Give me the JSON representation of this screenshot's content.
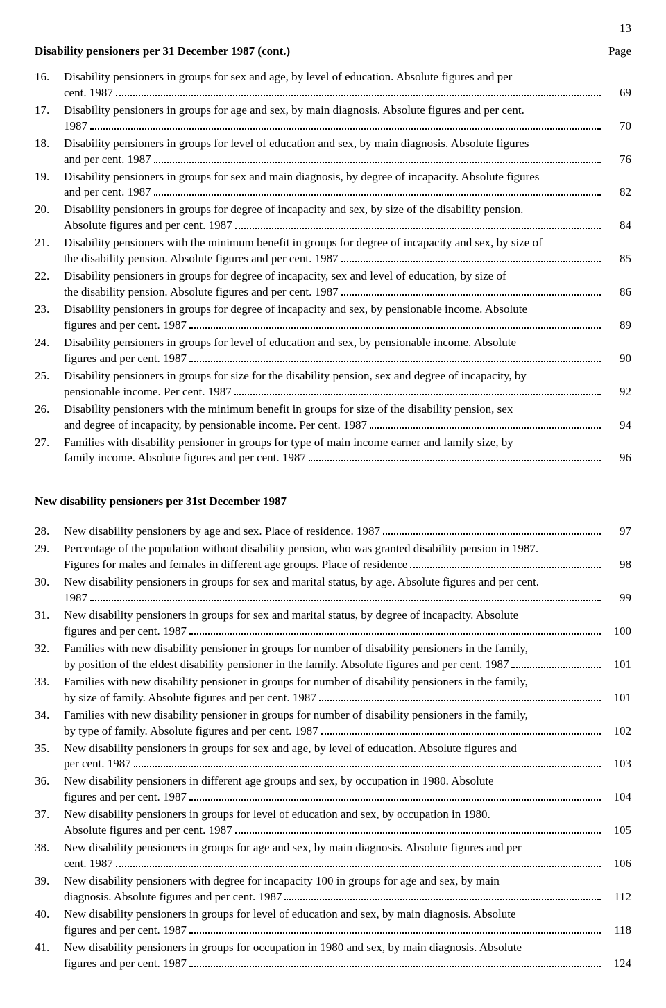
{
  "pageNumber": "13",
  "headerTitle": "Disability pensioners per 31 December 1987 (cont.)",
  "headerPageLabel": "Page",
  "section2Heading": "New disability pensioners per 31st December 1987",
  "section1": [
    {
      "num": "16.",
      "lines": [
        "Disability pensioners in groups for sex and age, by level of education. Absolute figures and per",
        "cent. 1987"
      ],
      "page": "69"
    },
    {
      "num": "17.",
      "lines": [
        "Disability pensioners in groups for age and sex, by main diagnosis. Absolute figures and per cent.",
        "1987"
      ],
      "page": "70"
    },
    {
      "num": "18.",
      "lines": [
        "Disability pensioners in groups for level of education and sex, by main diagnosis. Absolute figures",
        "and per cent. 1987"
      ],
      "page": "76"
    },
    {
      "num": "19.",
      "lines": [
        "Disability pensioners in groups for sex and main diagnosis, by degree of incapacity. Absolute figures",
        "and per cent. 1987"
      ],
      "page": "82"
    },
    {
      "num": "20.",
      "lines": [
        "Disability pensioners in groups for degree of incapacity and sex, by size of the disability pension.",
        "Absolute figures and per cent. 1987"
      ],
      "page": "84"
    },
    {
      "num": "21.",
      "lines": [
        "Disability pensioners with the minimum benefit in groups for degree of incapacity and sex, by size of",
        "the disability pension. Absolute figures and per cent. 1987"
      ],
      "page": "85"
    },
    {
      "num": "22.",
      "lines": [
        "Disability pensioners in groups for degree of incapacity, sex and level of education, by size of",
        "the disability pension. Absolute figures and per cent. 1987"
      ],
      "page": "86"
    },
    {
      "num": "23.",
      "lines": [
        "Disability pensioners in groups for degree of incapacity and sex, by pensionable income. Absolute",
        "figures and per cent. 1987"
      ],
      "page": "89"
    },
    {
      "num": "24.",
      "lines": [
        "Disability pensioners in groups for level of education and sex, by pensionable income. Absolute",
        "figures and per cent. 1987"
      ],
      "page": "90"
    },
    {
      "num": "25.",
      "lines": [
        "Disability pensioners in groups for size for the disability pension, sex and degree of incapacity, by",
        "pensionable income. Per cent. 1987"
      ],
      "page": "92"
    },
    {
      "num": "26.",
      "lines": [
        "Disability pensioners with the minimum benefit in groups for size of the disability pension, sex",
        "and degree of incapacity, by pensionable income. Per cent. 1987"
      ],
      "page": "94"
    },
    {
      "num": "27.",
      "lines": [
        "Families with disability pensioner in groups for type of main income earner and family size, by",
        "family income. Absolute figures and per cent. 1987"
      ],
      "page": "96"
    }
  ],
  "section2": [
    {
      "num": "28.",
      "lines": [
        "New disability pensioners by age and sex. Place of residence. 1987"
      ],
      "page": "97"
    },
    {
      "num": "29.",
      "lines": [
        "Percentage of the population without disability pension, who was granted disability pension in 1987.",
        "Figures for males and females in different age groups. Place of residence"
      ],
      "page": "98"
    },
    {
      "num": "30.",
      "lines": [
        "New disability pensioners in groups for sex and marital status, by age. Absolute figures and per cent.",
        "1987"
      ],
      "page": "99"
    },
    {
      "num": "31.",
      "lines": [
        "New disability pensioners in groups for sex and marital status, by degree of incapacity. Absolute",
        "figures and per cent. 1987"
      ],
      "page": "100"
    },
    {
      "num": "32.",
      "lines": [
        "Families with new disability pensioner in groups for number of disability pensioners in the family,",
        "by position of the eldest disability pensioner in the family. Absolute figures and per cent. 1987"
      ],
      "page": "101"
    },
    {
      "num": "33.",
      "lines": [
        "Families with new disability pensioner in groups for number of disability pensioners in the family,",
        "by size of family. Absolute figures and per cent. 1987"
      ],
      "page": "101"
    },
    {
      "num": "34.",
      "lines": [
        "Families with new disability pensioner in groups for number of disability pensioners in the family,",
        "by type of family. Absolute figures and per cent. 1987"
      ],
      "page": "102"
    },
    {
      "num": "35.",
      "lines": [
        "New disability pensioners in groups for sex and age, by level of education. Absolute figures and",
        "per cent. 1987"
      ],
      "page": "103"
    },
    {
      "num": "36.",
      "lines": [
        "New disability pensioners in different age groups and sex, by occupation in 1980. Absolute",
        "figures and per cent. 1987"
      ],
      "page": "104"
    },
    {
      "num": "37.",
      "lines": [
        "New disability pensioners in groups for level of education and sex, by occupation in 1980.",
        "Absolute figures and per cent. 1987"
      ],
      "page": "105"
    },
    {
      "num": "38.",
      "lines": [
        "New disability pensioners in groups for age and sex, by main diagnosis. Absolute figures and per",
        "cent. 1987"
      ],
      "page": "106"
    },
    {
      "num": "39.",
      "lines": [
        "New disability pensioners with degree for incapacity 100 in groups for age and sex, by main",
        "diagnosis. Absolute figures and per cent. 1987"
      ],
      "page": "112"
    },
    {
      "num": "40.",
      "lines": [
        "New disability pensioners in groups for level of education and sex, by main diagnosis. Absolute",
        "figures and per cent. 1987"
      ],
      "page": "118"
    },
    {
      "num": "41.",
      "lines": [
        "New disability pensioners in groups for occupation in 1980 and sex, by main diagnosis. Absolute",
        "figures and per cent. 1987"
      ],
      "page": "124"
    }
  ]
}
